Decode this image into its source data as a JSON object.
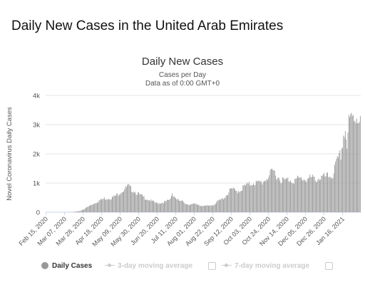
{
  "page_title": "Daily New Cases in the United Arab Emirates",
  "chart_data": {
    "type": "bar",
    "title": "Daily New Cases",
    "subtitle": "Cases per Day",
    "subtitle2": "Data as of 0:00 GMT+0",
    "ylabel": "Novel Coronavirus Daily Cases",
    "xlabel": "",
    "ylim": [
      0,
      4000
    ],
    "y_ticks": [
      "0",
      "1k",
      "2k",
      "3k",
      "4k"
    ],
    "x_tick_labels": [
      "Feb 15, 2020",
      "Mar 07, 2020",
      "Mar 28, 2020",
      "Apr 18, 2020",
      "May 09, 2020",
      "May 30, 2020",
      "Jun 20, 2020",
      "Jul 11, 2020",
      "Aug 01, 2020",
      "Aug 22, 2020",
      "Sep 12, 2020",
      "Oct 03, 2020",
      "Oct 24, 2020",
      "Nov 14, 2020",
      "Dec 05, 2020",
      "Dec 26, 2020",
      "Jan 16, 2021"
    ],
    "grid": true,
    "legend_position": "bottom",
    "bar_color": "#999999",
    "anchors": [
      [
        0,
        0
      ],
      [
        20,
        0
      ],
      [
        30,
        5
      ],
      [
        38,
        40
      ],
      [
        45,
        150
      ],
      [
        52,
        280
      ],
      [
        60,
        420
      ],
      [
        66,
        500
      ],
      [
        75,
        530
      ],
      [
        80,
        620
      ],
      [
        85,
        760
      ],
      [
        90,
        860
      ],
      [
        93,
        950
      ],
      [
        96,
        850
      ],
      [
        100,
        780
      ],
      [
        105,
        650
      ],
      [
        110,
        560
      ],
      [
        115,
        480
      ],
      [
        120,
        400
      ],
      [
        125,
        330
      ],
      [
        130,
        340
      ],
      [
        135,
        380
      ],
      [
        140,
        440
      ],
      [
        143,
        700
      ],
      [
        146,
        550
      ],
      [
        150,
        420
      ],
      [
        155,
        380
      ],
      [
        160,
        300
      ],
      [
        165,
        280
      ],
      [
        170,
        300
      ],
      [
        175,
        250
      ],
      [
        180,
        220
      ],
      [
        185,
        240
      ],
      [
        190,
        280
      ],
      [
        195,
        400
      ],
      [
        200,
        480
      ],
      [
        205,
        650
      ],
      [
        210,
        850
      ],
      [
        215,
        760
      ],
      [
        220,
        800
      ],
      [
        225,
        950
      ],
      [
        230,
        1000
      ],
      [
        235,
        1100
      ],
      [
        240,
        1050
      ],
      [
        245,
        1100
      ],
      [
        250,
        1250
      ],
      [
        255,
        1400
      ],
      [
        258,
        1500
      ],
      [
        262,
        1300
      ],
      [
        266,
        1200
      ],
      [
        270,
        1150
      ],
      [
        275,
        1200
      ],
      [
        280,
        1150
      ],
      [
        285,
        1200
      ],
      [
        290,
        1230
      ],
      [
        295,
        1200
      ],
      [
        300,
        1250
      ],
      [
        305,
        1200
      ],
      [
        310,
        1250
      ],
      [
        315,
        1280
      ],
      [
        320,
        1300
      ],
      [
        325,
        1350
      ],
      [
        328,
        1700
      ],
      [
        331,
        1900
      ],
      [
        334,
        2100
      ],
      [
        337,
        2800
      ],
      [
        339,
        3000
      ],
      [
        341,
        2400
      ],
      [
        343,
        3200
      ],
      [
        345,
        3350
      ],
      [
        347,
        3420
      ],
      [
        350,
        3480
      ],
      [
        353,
        3520
      ],
      [
        356,
        3560
      ]
    ],
    "x_min": 0,
    "x_max": 356,
    "tick_day_offsets": [
      0,
      21,
      42,
      63,
      84,
      105,
      126,
      147,
      168,
      189,
      210,
      231,
      252,
      273,
      294,
      315,
      336
    ]
  },
  "legend": {
    "daily_label": "Daily Cases",
    "ma3_label": "3-day moving average",
    "ma7_label": "7-day moving average"
  }
}
